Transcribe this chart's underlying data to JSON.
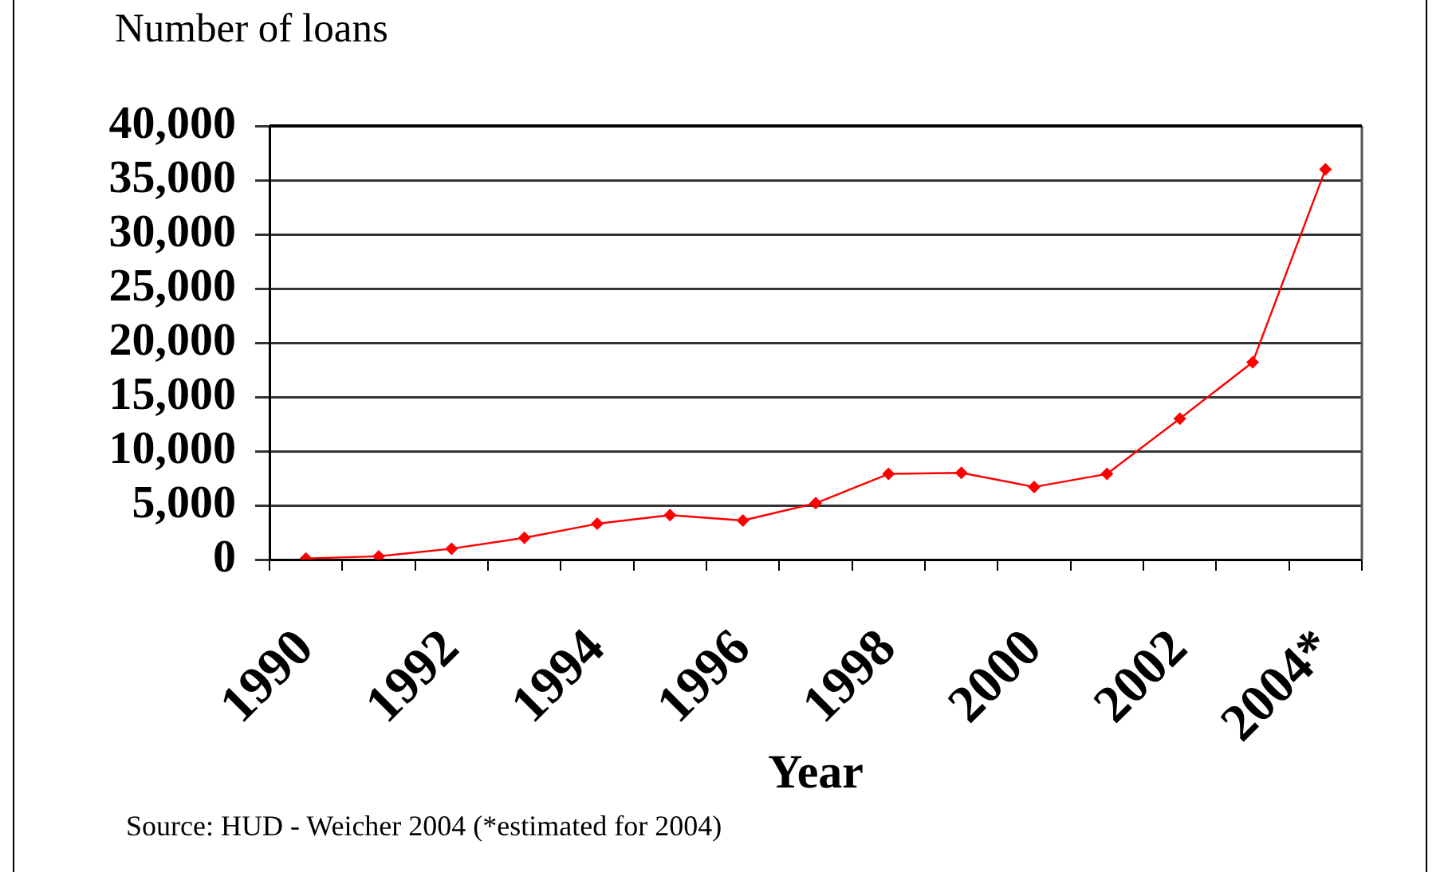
{
  "chart_data": {
    "type": "line",
    "ylabel": "Number of loans",
    "xlabel": "Year",
    "annotations": [
      "Source: HUD - Weicher 2004 (*estimated for 2004)"
    ],
    "categories": [
      "1990",
      null,
      "1992",
      null,
      "1994",
      null,
      "1996",
      null,
      "1998",
      null,
      "2000",
      null,
      "2002",
      null,
      "2004*"
    ],
    "series": [
      {
        "color": "#ff0000",
        "values": [
          100,
          300,
          1000,
          2000,
          3300,
          4100,
          3600,
          5200,
          7900,
          8000,
          6700,
          7900,
          13000,
          18200,
          36000
        ]
      }
    ],
    "ylim": [
      0,
      40000
    ],
    "yticks": [
      0,
      {
        "value": 5000,
        "label": "5,000"
      },
      {
        "value": 10000,
        "label": "10,000"
      },
      {
        "value": 15000,
        "label": "15,000"
      },
      {
        "value": 20000,
        "label": "20,000"
      },
      {
        "value": 25000,
        "label": "25,000"
      },
      {
        "value": 30000,
        "label": "30,000"
      },
      {
        "value": 35000,
        "label": "35,000"
      },
      {
        "value": 40000,
        "label": "40,000"
      }
    ],
    "grid": "y",
    "marker": "diamond",
    "line_style": "solid"
  }
}
